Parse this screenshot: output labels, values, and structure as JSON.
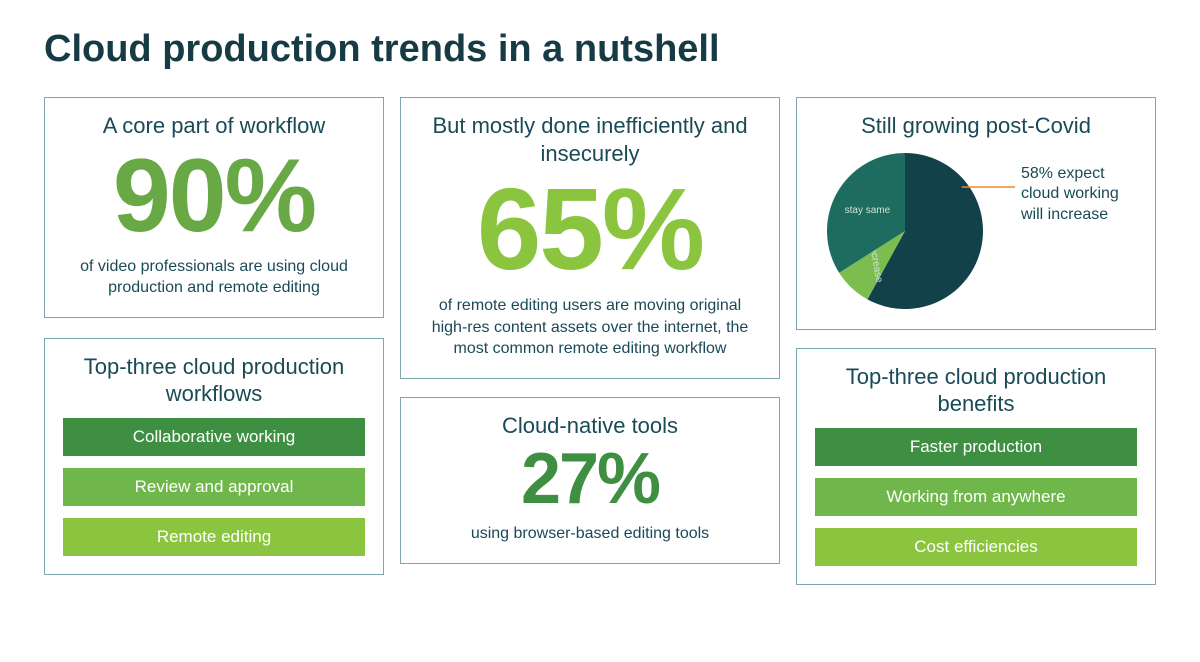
{
  "title": "Cloud production trends in a nutshell",
  "colors": {
    "title_text": "#173b45",
    "body_text": "#1a4a58",
    "box_border": "#7ea6b0",
    "percent_green_mid": "#68a945",
    "percent_green_light": "#8bc53f",
    "percent_green_dark": "#3f8f43",
    "bar_dark": "#3f8f43",
    "bar_mid": "#6fb74b",
    "bar_light": "#8bc53f",
    "pie_dark_teal": "#12414a",
    "pie_mid_teal": "#1e6b5f",
    "pie_green": "#5aa24c",
    "pie_light_green": "#7bbd4f",
    "leader_line": "#e78b2a"
  },
  "left": {
    "core": {
      "title": "A core part of workflow",
      "percent": "90%",
      "percent_color": "#68a945",
      "desc": "of video professionals  are using cloud production and remote editing"
    },
    "workflows": {
      "title": "Top-three cloud production workflows",
      "items": [
        {
          "label": "Collaborative working",
          "color": "#3f8f43"
        },
        {
          "label": "Review and approval",
          "color": "#6fb74b"
        },
        {
          "label": "Remote editing",
          "color": "#8bc53f"
        }
      ]
    }
  },
  "middle": {
    "ineff": {
      "title": "But mostly done inefficiently and insecurely",
      "percent": "65%",
      "percent_color": "#8bc53f",
      "desc": "of remote editing users are moving original high-res content assets over the internet, the most common remote editing workflow"
    },
    "native": {
      "title": "Cloud-native tools",
      "percent": "27%",
      "percent_color": "#3f8f43",
      "desc": "using browser-based editing tools"
    }
  },
  "right": {
    "pie": {
      "title": "Still growing post-Covid",
      "caption": "58% expect cloud working will increase",
      "slices": [
        {
          "name": "increase",
          "value": 58,
          "color": "#12414a"
        },
        {
          "name": "decrease",
          "value": 8,
          "color": "#7bbd4f",
          "label": "decrease"
        },
        {
          "name": "stay same",
          "value": 34,
          "color": "#1e6b5f",
          "label": "stay same"
        }
      ],
      "radius": 78,
      "start_angle_deg": -90
    },
    "benefits": {
      "title": "Top-three cloud production benefits",
      "items": [
        {
          "label": "Faster production",
          "color": "#3f8f43"
        },
        {
          "label": "Working from anywhere",
          "color": "#6fb74b"
        },
        {
          "label": "Cost efficiencies",
          "color": "#8bc53f"
        }
      ]
    }
  }
}
